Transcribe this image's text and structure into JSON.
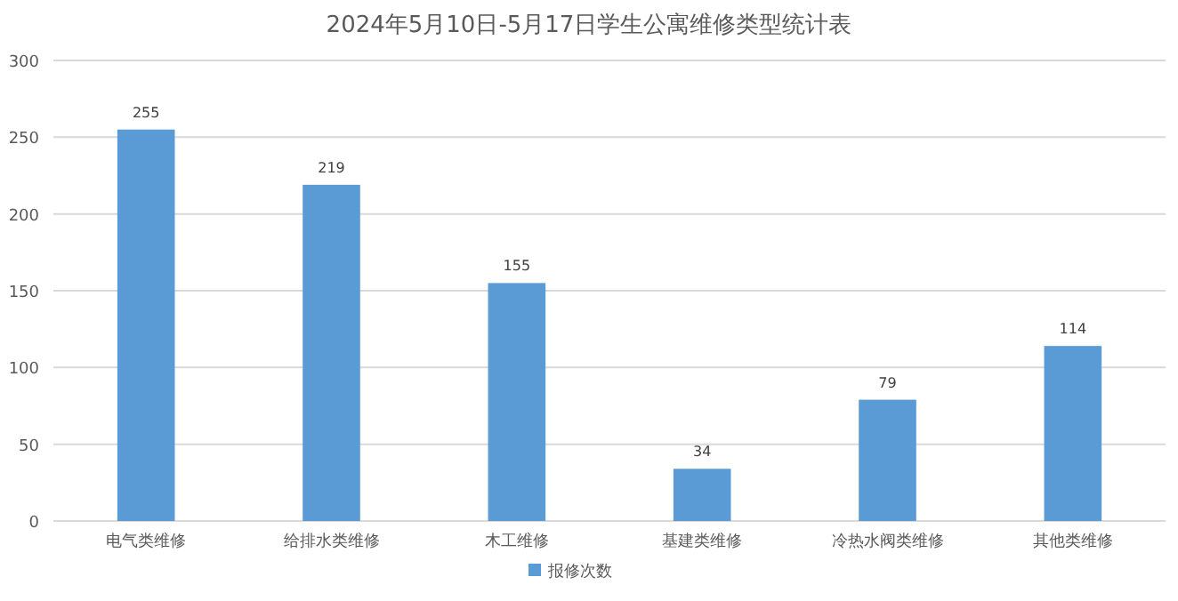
{
  "chart_data": {
    "type": "bar",
    "title": "2024年5月10日-5月17日学生公寓维修类型统计表",
    "categories": [
      "电气类维修",
      "给排水类维修",
      "木工维修",
      "基建类维修",
      "冷热水阀类维修",
      "其他类维修"
    ],
    "series": [
      {
        "name": "报修次数",
        "color": "#5b9bd5",
        "values": [
          255,
          219,
          155,
          34,
          79,
          114
        ]
      }
    ],
    "ylim": [
      0,
      300
    ],
    "yticks": [
      0,
      50,
      100,
      150,
      200,
      250,
      300
    ],
    "grid": "y",
    "legend": "bottom",
    "data_labels": true
  }
}
